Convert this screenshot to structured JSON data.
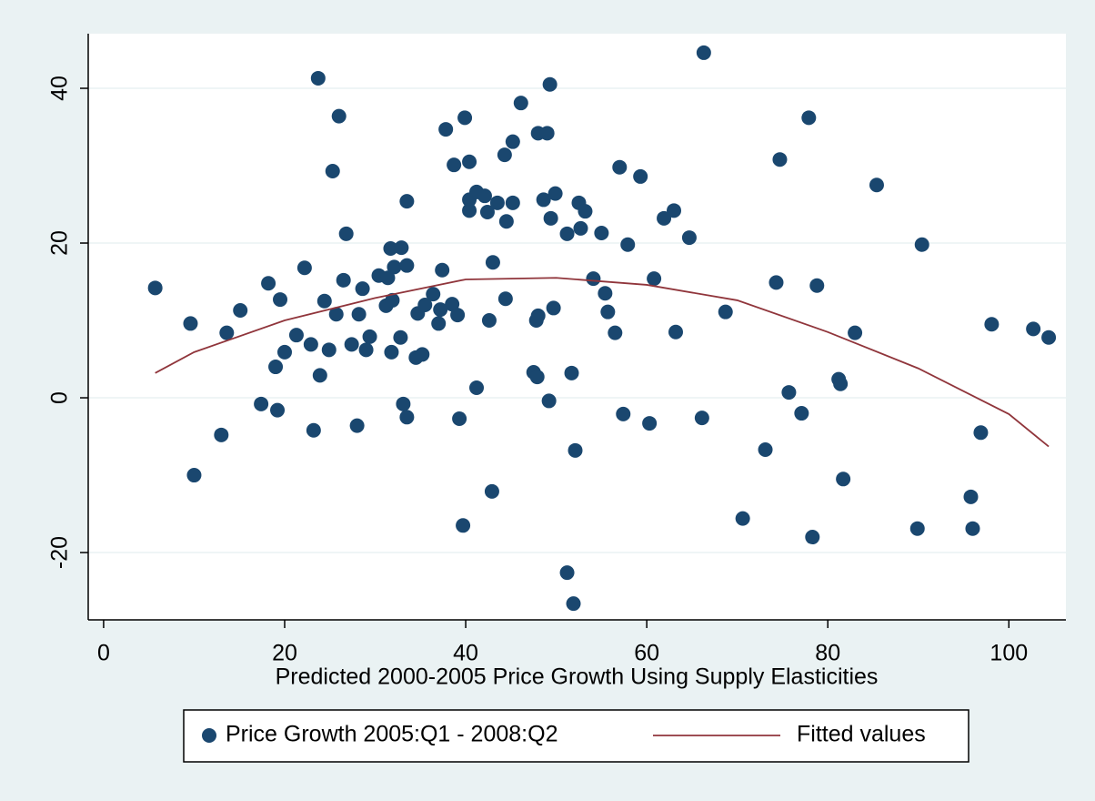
{
  "chart_data": {
    "type": "scatter",
    "x_label": "Predicted 2000-2005 Price Growth Using Supply Elasticities",
    "xlim": [
      -1.7,
      106.3
    ],
    "ylim": [
      -28.7,
      47.06
    ],
    "xticks": [
      0,
      20,
      40,
      60,
      80,
      100
    ],
    "yticks": [
      -20,
      0,
      20,
      40
    ],
    "grid": true,
    "legend": "bottom",
    "series": [
      {
        "name": "Price Growth 2005:Q1 - 2008:Q2",
        "type": "scatter",
        "color": "#1a476f",
        "x": [
          5.7,
          9.6,
          10.0,
          13.0,
          13.6,
          15.1,
          17.4,
          18.2,
          19.0,
          19.2,
          19.5,
          20.0,
          21.3,
          22.2,
          22.9,
          23.2,
          23.7,
          23.9,
          24.4,
          24.9,
          25.3,
          25.7,
          26.0,
          26.5,
          26.8,
          27.4,
          28.0,
          28.2,
          28.6,
          29.0,
          29.4,
          30.4,
          31.2,
          31.4,
          31.7,
          31.8,
          31.9,
          32.1,
          32.8,
          32.9,
          33.1,
          33.5,
          33.5,
          33.5,
          34.5,
          34.7,
          35.2,
          35.5,
          36.4,
          37.0,
          37.2,
          37.4,
          37.8,
          38.5,
          38.7,
          39.1,
          39.3,
          39.7,
          39.9,
          40.4,
          40.4,
          40.4,
          41.2,
          41.2,
          42.1,
          42.4,
          42.6,
          42.9,
          43.0,
          43.5,
          44.3,
          44.5,
          44.4,
          46.1,
          45.2,
          45.2,
          47.5,
          47.8,
          47.9,
          48.0,
          48.0,
          48.6,
          49.0,
          49.2,
          49.4,
          49.3,
          49.7,
          49.9,
          51.2,
          51.2,
          51.7,
          51.9,
          52.1,
          52.5,
          52.7,
          53.2,
          54.1,
          55.0,
          55.4,
          55.7,
          56.5,
          57.0,
          57.4,
          57.9,
          59.3,
          60.3,
          60.8,
          61.9,
          63.0,
          63.2,
          64.7,
          66.1,
          66.3,
          68.7,
          70.6,
          73.1,
          74.3,
          74.7,
          75.7,
          77.1,
          77.9,
          78.3,
          78.8,
          81.2,
          81.4,
          81.7,
          83.0,
          85.4,
          89.9,
          90.4,
          95.8,
          96.0,
          96.9,
          98.1,
          102.7,
          104.4
        ],
        "values": [
          14.2,
          9.6,
          -10.0,
          -4.8,
          8.4,
          11.3,
          -0.8,
          14.8,
          4.0,
          -1.6,
          12.7,
          5.9,
          8.1,
          16.8,
          6.9,
          -4.2,
          41.3,
          2.9,
          12.5,
          6.2,
          29.3,
          10.8,
          36.4,
          15.2,
          21.2,
          6.9,
          -3.6,
          10.8,
          14.1,
          6.2,
          7.9,
          15.8,
          11.9,
          15.5,
          19.3,
          5.9,
          12.6,
          16.9,
          7.8,
          19.4,
          -0.8,
          17.1,
          -2.5,
          25.4,
          5.2,
          10.9,
          5.6,
          12.0,
          13.4,
          9.6,
          11.4,
          16.5,
          34.7,
          12.1,
          30.1,
          10.7,
          -2.7,
          -16.5,
          36.2,
          30.5,
          25.6,
          24.2,
          1.3,
          26.6,
          26.1,
          24.0,
          10.0,
          -12.1,
          17.5,
          25.2,
          31.4,
          22.8,
          12.8,
          38.1,
          33.1,
          25.2,
          3.3,
          10.0,
          2.7,
          10.6,
          34.2,
          25.6,
          34.2,
          -0.4,
          23.2,
          40.5,
          11.6,
          26.4,
          21.2,
          -22.6,
          3.2,
          -26.6,
          -6.8,
          25.2,
          21.9,
          24.1,
          15.4,
          21.3,
          13.5,
          11.1,
          8.4,
          29.8,
          -2.1,
          19.8,
          28.6,
          -3.3,
          15.4,
          23.2,
          24.2,
          8.5,
          20.7,
          -2.6,
          44.6,
          11.1,
          -15.6,
          -6.7,
          14.9,
          30.8,
          0.7,
          -2.0,
          36.2,
          -18.0,
          14.5,
          2.4,
          1.8,
          -10.5,
          8.4,
          27.5,
          -16.9,
          19.8,
          -12.8,
          -16.9,
          -4.5,
          9.5,
          8.9,
          7.8
        ]
      },
      {
        "name": "Fitted values",
        "type": "line",
        "color": "#90353b",
        "x": [
          5.7,
          10,
          20,
          30,
          40,
          50,
          60,
          70,
          80,
          90,
          100,
          104.4
        ],
        "values": [
          3.2,
          5.9,
          10.0,
          12.9,
          15.3,
          15.5,
          14.6,
          12.6,
          8.5,
          3.8,
          -2.1,
          -6.3
        ]
      }
    ]
  }
}
